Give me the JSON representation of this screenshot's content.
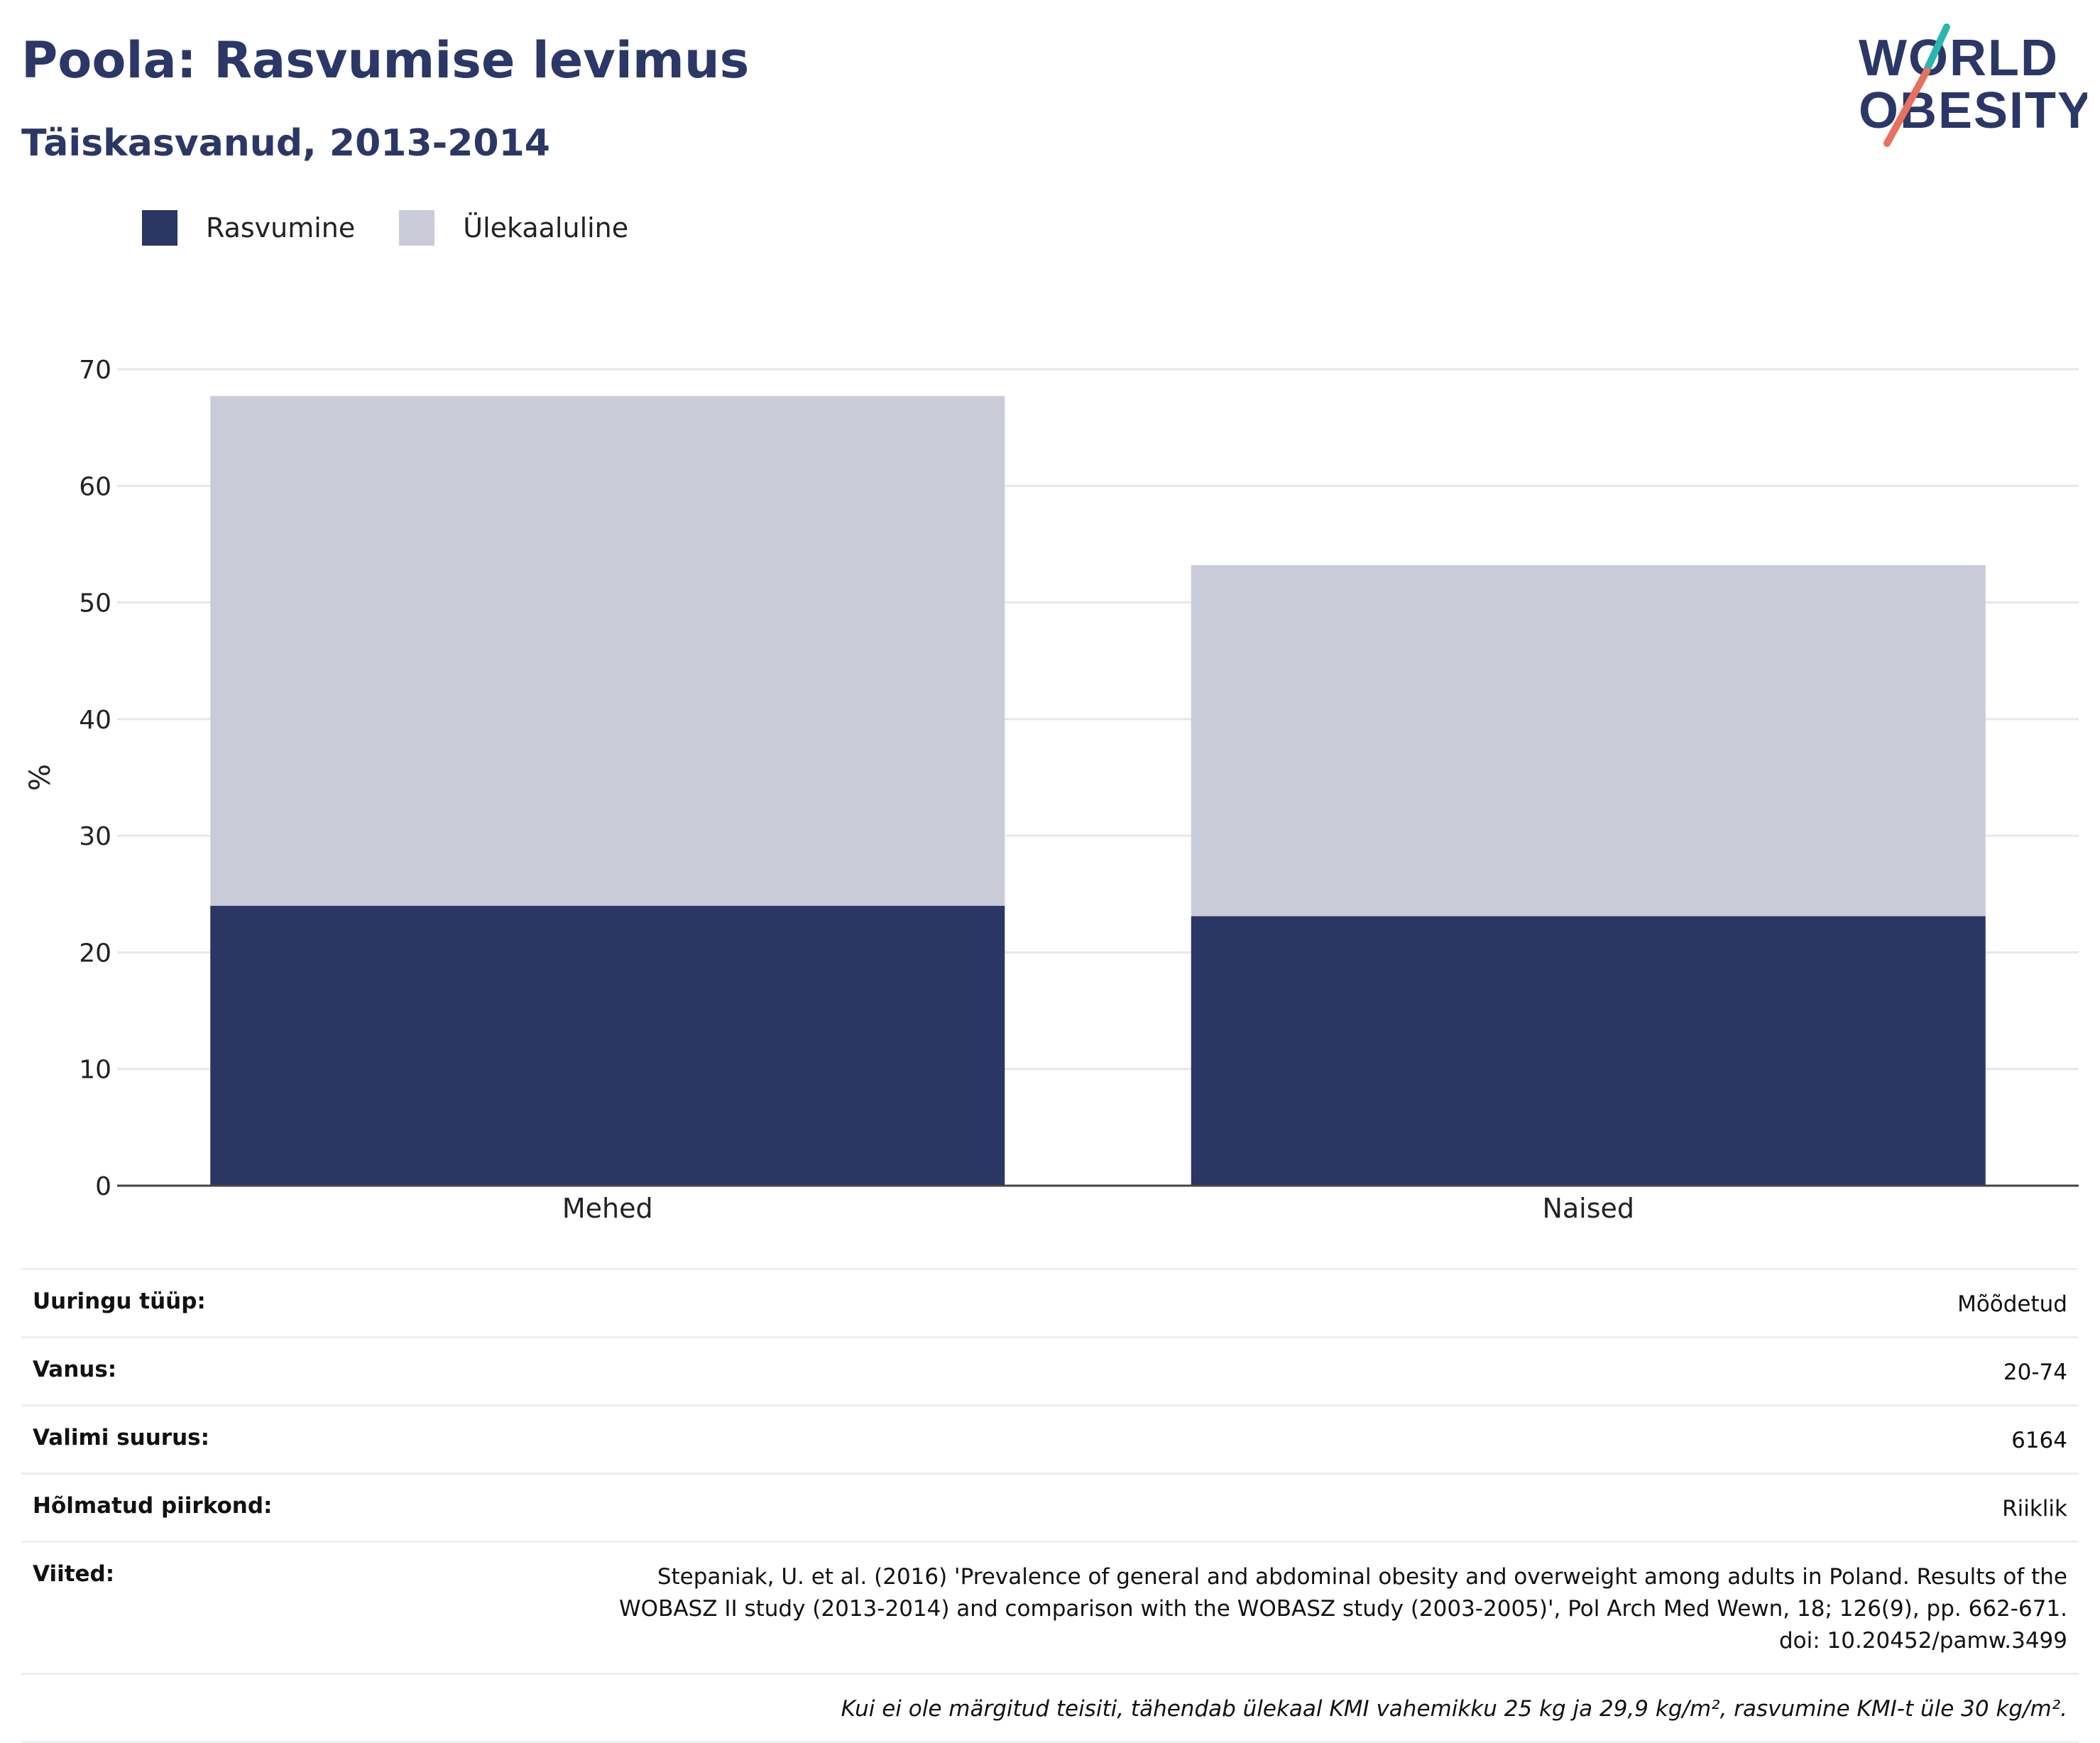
{
  "header": {
    "title": "Poola: Rasvumise levimus",
    "subtitle": "Täiskasvanud, 2013-2014"
  },
  "logo": {
    "line1": "WORLD",
    "line2": "OBESITY",
    "colors": {
      "text": "#2b3766",
      "teal": "#2bb5b1",
      "coral": "#e8705c"
    }
  },
  "legend": [
    {
      "label": "Rasvumine",
      "color": "#2a3664"
    },
    {
      "label": "Ülekaaluline",
      "color": "#c9ccd8"
    }
  ],
  "chart_data": {
    "type": "bar",
    "stacked": true,
    "categories": [
      "Mehed",
      "Naised"
    ],
    "series": [
      {
        "name": "Rasvumine",
        "values": [
          24.0,
          23.1
        ],
        "color": "#2a3664"
      },
      {
        "name": "Ülekaaluline",
        "values": [
          43.7,
          30.1
        ],
        "color": "#c9ccd8"
      }
    ],
    "ylabel": "%",
    "ylim": [
      0,
      70
    ],
    "yticks": [
      0,
      10,
      20,
      30,
      40,
      50,
      60,
      70
    ],
    "grid": true,
    "legend_position": "top-left"
  },
  "info": [
    {
      "key": "Uuringu tüüp:",
      "value": "Mõõdetud"
    },
    {
      "key": "Vanus:",
      "value": "20-74"
    },
    {
      "key": "Valimi suurus:",
      "value": "6164"
    },
    {
      "key": "Hõlmatud piirkond:",
      "value": "Riiklik"
    },
    {
      "key": "Viited:",
      "value_lines": [
        "Stepaniak, U. et al. (2016) 'Prevalence of general and abdominal obesity and overweight among adults in Poland. Results of the",
        "WOBASZ II study (2013-2014) and comparison with the WOBASZ study (2003-2005)', Pol Arch Med Wewn, 18; 126(9), pp. 662-671.",
        "doi: 10.20452/pamw.3499"
      ]
    }
  ],
  "footnote": "Kui ei ole märgitud teisiti, tähendab ülekaal KMI vahemikku 25 kg ja 29,9 kg/m², rasvumine KMI-t üle 30 kg/m²."
}
